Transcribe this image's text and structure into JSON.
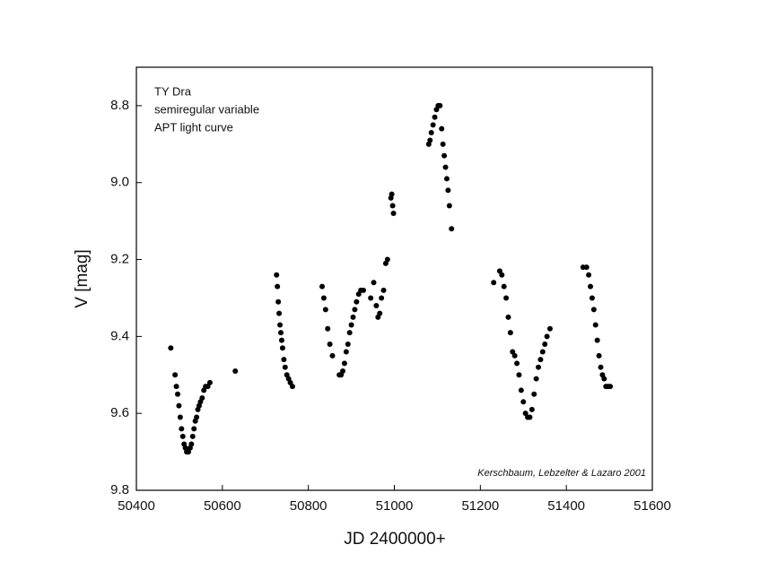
{
  "chart_data": {
    "type": "scatter",
    "annotations": [
      "TY Dra",
      "semiregular variable",
      "APT light curve"
    ],
    "credit": "Kerschbaum, Lebzelter & Lazaro 2001",
    "x_label": "JD 2400000+",
    "y_label": "V [mag]",
    "xlim": [
      50400,
      51600
    ],
    "xticks": [
      50400,
      50600,
      50800,
      51000,
      51200,
      51400,
      51600
    ],
    "ylim": [
      8.7,
      9.8
    ],
    "y_inverted": true,
    "yticks": [
      8.8,
      {
        "value": 9,
        "label": "9.0"
      },
      9.2,
      9.4,
      9.6,
      9.8
    ],
    "color": "#000000",
    "x": [
      50480,
      50490,
      50493,
      50496,
      50499,
      50502,
      50505,
      50508,
      50511,
      50514,
      50517,
      50521,
      50525,
      50528,
      50531,
      50534,
      50537,
      50540,
      50543,
      50546,
      50549,
      50553,
      50557,
      50561,
      50566,
      50571,
      50630,
      50726,
      50728,
      50730,
      50732,
      50734,
      50736,
      50738,
      50740,
      50743,
      50746,
      50750,
      50754,
      50758,
      50763,
      50832,
      50836,
      50840,
      50845,
      50850,
      50856,
      50872,
      50876,
      50880,
      50884,
      50888,
      50892,
      50896,
      50900,
      50904,
      50908,
      50912,
      50917,
      50922,
      50928,
      50945,
      50952,
      50958,
      50962,
      50966,
      50970,
      50975,
      50980,
      50984,
      50992,
      50994,
      50996,
      50998,
      51080,
      51083,
      51086,
      51090,
      51094,
      51098,
      51102,
      51106,
      51110,
      51113,
      51116,
      51119,
      51122,
      51125,
      51128,
      51133,
      51231,
      51245,
      51250,
      51255,
      51260,
      51265,
      51270,
      51275,
      51280,
      51285,
      51290,
      51295,
      51300,
      51305,
      51310,
      51315,
      51320,
      51325,
      51330,
      51335,
      51340,
      51345,
      51350,
      51355,
      51362,
      51439,
      51447,
      51452,
      51456,
      51460,
      51464,
      51468,
      51472,
      51476,
      51480,
      51484,
      51488,
      51492,
      51497,
      51502
    ],
    "values": [
      9.43,
      9.5,
      9.53,
      9.55,
      9.58,
      9.61,
      9.64,
      9.66,
      9.68,
      9.69,
      9.7,
      9.7,
      9.69,
      9.68,
      9.66,
      9.64,
      9.62,
      9.61,
      9.59,
      9.58,
      9.57,
      9.56,
      9.54,
      9.53,
      9.53,
      9.52,
      9.49,
      9.24,
      9.27,
      9.31,
      9.34,
      9.37,
      9.39,
      9.41,
      9.43,
      9.46,
      9.48,
      9.5,
      9.51,
      9.52,
      9.53,
      9.27,
      9.3,
      9.33,
      9.38,
      9.42,
      9.45,
      9.5,
      9.5,
      9.49,
      9.47,
      9.44,
      9.42,
      9.39,
      9.37,
      9.35,
      9.33,
      9.31,
      9.29,
      9.28,
      9.28,
      9.3,
      9.26,
      9.32,
      9.35,
      9.34,
      9.3,
      9.28,
      9.21,
      9.2,
      9.04,
      9.03,
      9.06,
      9.08,
      8.9,
      8.89,
      8.87,
      8.85,
      8.83,
      8.81,
      8.8,
      8.8,
      8.86,
      8.9,
      8.93,
      8.96,
      8.99,
      9.02,
      9.06,
      9.12,
      9.26,
      9.23,
      9.24,
      9.27,
      9.3,
      9.35,
      9.39,
      9.44,
      9.45,
      9.47,
      9.5,
      9.54,
      9.57,
      9.6,
      9.61,
      9.61,
      9.59,
      9.55,
      9.51,
      9.48,
      9.46,
      9.44,
      9.42,
      9.4,
      9.38,
      9.22,
      9.22,
      9.24,
      9.27,
      9.3,
      9.33,
      9.37,
      9.41,
      9.45,
      9.48,
      9.5,
      9.51,
      9.53,
      9.53,
      9.53
    ]
  }
}
